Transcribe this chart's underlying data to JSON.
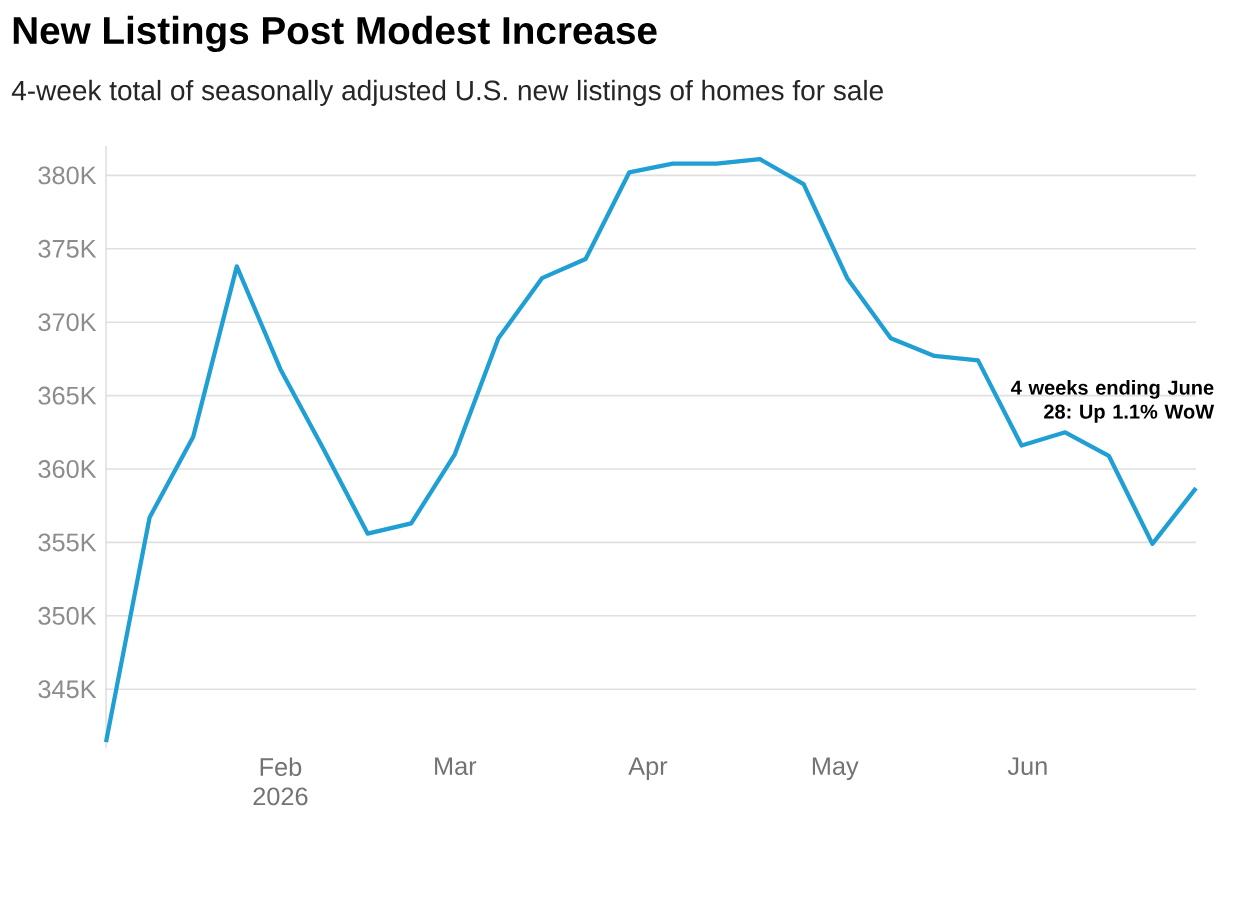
{
  "chart_data": {
    "type": "line",
    "title": "New Listings Post Modest Increase",
    "subtitle": "4-week total of seasonally adjusted U.S. new listings of homes for sale",
    "x": [
      "2026-01-04",
      "2026-01-11",
      "2026-01-18",
      "2026-01-25",
      "2026-02-01",
      "2026-02-08",
      "2026-02-15",
      "2026-02-22",
      "2026-03-01",
      "2026-03-08",
      "2026-03-15",
      "2026-03-22",
      "2026-03-29",
      "2026-04-05",
      "2026-04-12",
      "2026-04-19",
      "2026-04-26",
      "2026-05-03",
      "2026-05-10",
      "2026-05-17",
      "2026-05-24",
      "2026-05-31",
      "2026-06-07",
      "2026-06-14",
      "2026-06-21",
      "2026-06-28"
    ],
    "series": [
      {
        "color": "#1f9fd3",
        "values": [
          341400,
          356700,
          362200,
          373800,
          366800,
          361300,
          355600,
          356300,
          361000,
          368900,
          373000,
          374300,
          380200,
          380800,
          380800,
          381100,
          379400,
          373000,
          368900,
          367700,
          367400,
          361600,
          362500,
          360900,
          354900,
          358700
        ]
      }
    ],
    "xlim": [
      "2026-01-04",
      "2026-06-28"
    ],
    "xticks": [
      {
        "value": "2026-02-01",
        "label": "Feb 2026"
      },
      {
        "value": "2026-03-01",
        "label": "Mar"
      },
      {
        "value": "2026-04-01",
        "label": "Apr"
      },
      {
        "value": "2026-05-01",
        "label": "May"
      },
      {
        "value": "2026-06-01",
        "label": "Jun"
      }
    ],
    "ylim": [
      341000,
      382000
    ],
    "yticks": [
      {
        "value": 345000,
        "label": "345K"
      },
      {
        "value": 350000,
        "label": "350K"
      },
      {
        "value": 355000,
        "label": "355K"
      },
      {
        "value": 360000,
        "label": "360K"
      },
      {
        "value": 365000,
        "label": "365K"
      },
      {
        "value": 370000,
        "label": "370K"
      },
      {
        "value": 375000,
        "label": "375K"
      },
      {
        "value": 380000,
        "label": "380K"
      }
    ],
    "grid": "y",
    "marker": "none",
    "line_style": "solid",
    "annotations": [
      "**4 weeks ending June 28: Up 1.1% WoW**"
    ]
  }
}
